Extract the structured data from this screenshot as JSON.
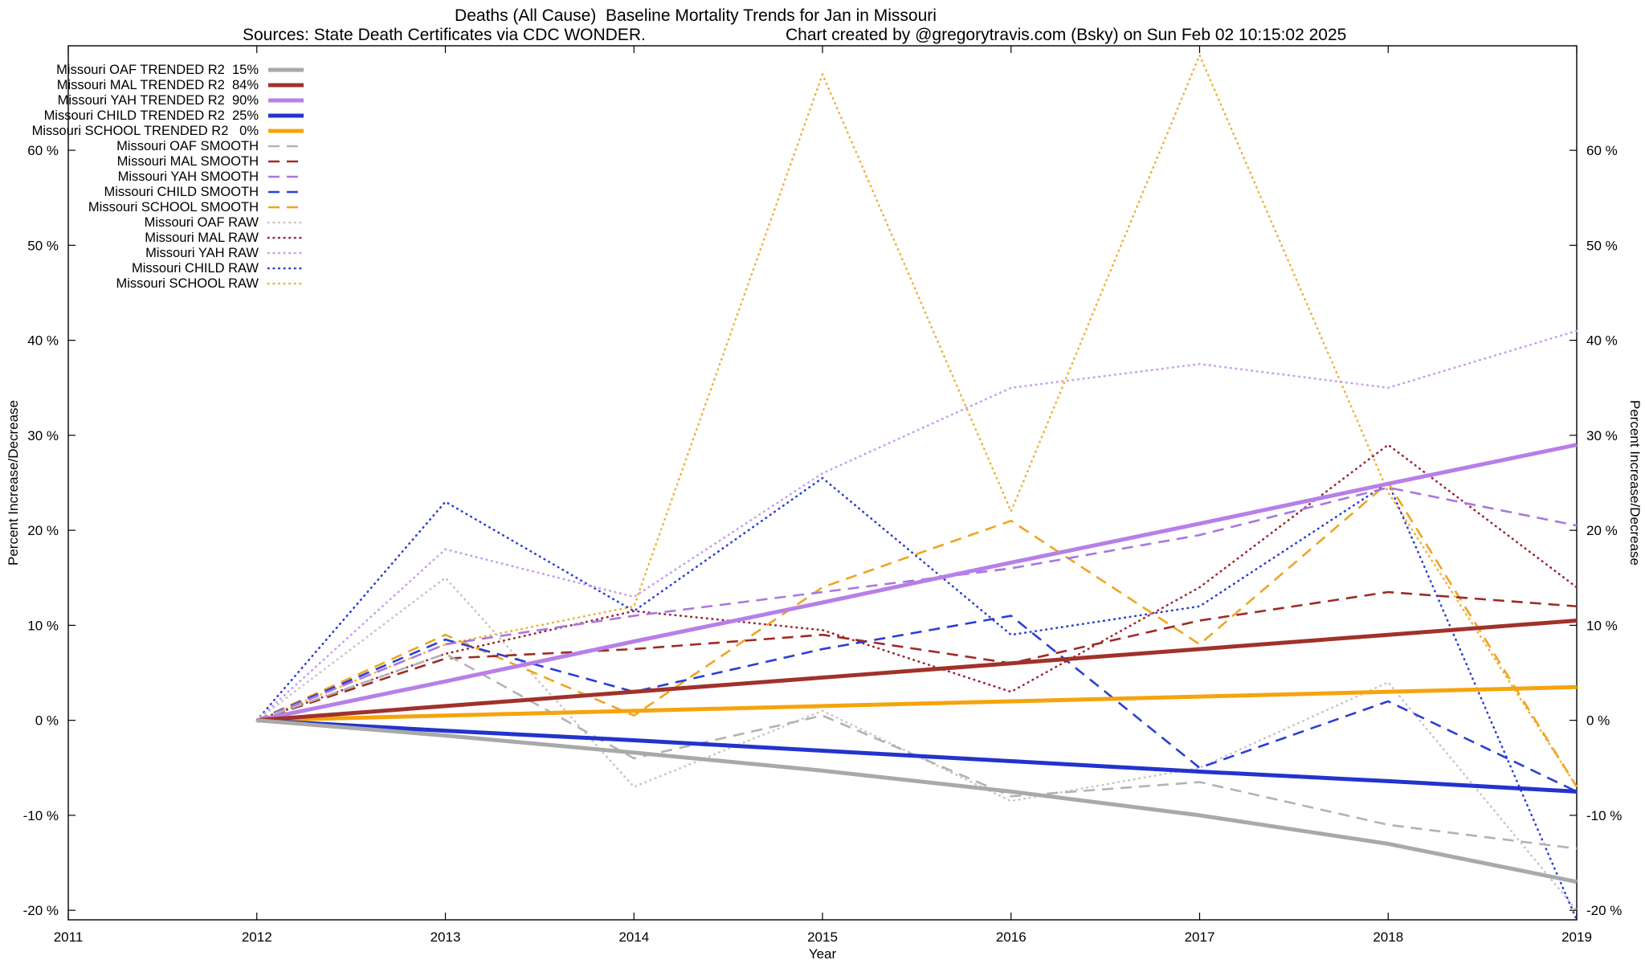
{
  "chart_data": {
    "type": "line",
    "title": "Deaths (All Cause)  Baseline Mortality Trends for Jan in Missouri",
    "source_note": "Sources: State Death Certificates via CDC WONDER.",
    "credit_note": "Chart created by @gregorytravis.com (Bsky) on Sun Feb 02 10:15:02 2025",
    "xlabel": "Year",
    "ylabel_left": "Percent Increase/Decrease",
    "ylabel_right": "Percent Increase/Decrease",
    "xlim": [
      2011,
      2019
    ],
    "ylim": [
      -21,
      71
    ],
    "x_ticks": [
      2011,
      2012,
      2013,
      2014,
      2015,
      2016,
      2017,
      2018,
      2019
    ],
    "y_ticks": [
      -20,
      -10,
      0,
      10,
      20,
      30,
      40,
      50,
      60
    ],
    "y_tick_suffix": " %",
    "grid": false,
    "legend_position": "top-left",
    "x": [
      2012,
      2013,
      2014,
      2015,
      2016,
      2017,
      2018,
      2019
    ],
    "series": [
      {
        "id": "oaf-trended",
        "name": "Missouri OAF TRENDED R2  15%",
        "color": "#a9a9a9",
        "style": "solid",
        "width": 5,
        "values": [
          0,
          -1.6,
          -3.4,
          -5.3,
          -7.5,
          -10,
          -13,
          -17
        ]
      },
      {
        "id": "mal-trended",
        "name": "Missouri MAL TRENDED R2  84%",
        "color": "#a0322a",
        "style": "solid",
        "width": 5,
        "values": [
          0,
          1.5,
          3,
          4.5,
          6,
          7.5,
          9,
          10.5
        ]
      },
      {
        "id": "yah-trended",
        "name": "Missouri YAH TRENDED R2  90%",
        "color": "#b77fe8",
        "style": "solid",
        "width": 5,
        "values": [
          0,
          4.1,
          8.3,
          12.4,
          16.6,
          20.7,
          24.9,
          29
        ]
      },
      {
        "id": "child-trended",
        "name": "Missouri CHILD TRENDED R2  25%",
        "color": "#2433cc",
        "style": "solid",
        "width": 5,
        "values": [
          0,
          -1.1,
          -2.1,
          -3.2,
          -4.3,
          -5.4,
          -6.4,
          -7.5
        ]
      },
      {
        "id": "school-trended",
        "name": "Missouri SCHOOL TRENDED R2   0%",
        "color": "#f5a40c",
        "style": "solid",
        "width": 5,
        "values": [
          0,
          0.5,
          1,
          1.5,
          2,
          2.5,
          3,
          3.5
        ]
      },
      {
        "id": "oaf-smooth",
        "name": "Missouri OAF SMOOTH",
        "color": "#b3b3b3",
        "style": "dashed",
        "width": 2.6,
        "values": [
          0,
          7,
          -4,
          0.5,
          -8,
          -6.5,
          -11,
          -13.5
        ]
      },
      {
        "id": "mal-smooth",
        "name": "Missouri MAL SMOOTH",
        "color": "#9e2b25",
        "style": "dashed",
        "width": 2.6,
        "values": [
          0,
          6.5,
          7.5,
          9,
          6,
          10.5,
          13.5,
          12
        ]
      },
      {
        "id": "yah-smooth",
        "name": "Missouri YAH SMOOTH",
        "color": "#a877e0",
        "style": "dashed",
        "width": 2.6,
        "values": [
          0,
          8,
          11,
          13.5,
          16,
          19.5,
          24.5,
          20.5
        ]
      },
      {
        "id": "child-smooth",
        "name": "Missouri CHILD SMOOTH",
        "color": "#2a3fd4",
        "style": "dashed",
        "width": 2.6,
        "values": [
          0,
          8.5,
          3,
          7.5,
          11,
          -5,
          2,
          -7.5
        ]
      },
      {
        "id": "school-smooth",
        "name": "Missouri SCHOOL SMOOTH",
        "color": "#f0a51e",
        "style": "dashed",
        "width": 2.6,
        "values": [
          0,
          9,
          0.5,
          14,
          21,
          8,
          25,
          -7
        ]
      },
      {
        "id": "oaf-raw",
        "name": "Missouri OAF RAW",
        "color": "#c6c6c6",
        "style": "dotted",
        "width": 2.6,
        "values": [
          0,
          15,
          -7,
          1,
          -8.5,
          -5,
          4,
          -20
        ]
      },
      {
        "id": "mal-raw",
        "name": "Missouri MAL RAW",
        "color": "#9b2433",
        "style": "dotted",
        "width": 2.6,
        "values": [
          0,
          7,
          11.5,
          9.5,
          3,
          14,
          29,
          14
        ]
      },
      {
        "id": "yah-raw",
        "name": "Missouri YAH RAW",
        "color": "#c79df0",
        "style": "dotted",
        "width": 2.6,
        "values": [
          0,
          18,
          13,
          26,
          35,
          37.5,
          35,
          41
        ]
      },
      {
        "id": "child-raw",
        "name": "Missouri CHILD RAW",
        "color": "#2a3fd4",
        "style": "dotted",
        "width": 2.6,
        "values": [
          0,
          23,
          11.5,
          25.5,
          9,
          12,
          25,
          -21
        ]
      },
      {
        "id": "school-raw",
        "name": "Missouri SCHOOL RAW",
        "color": "#efb13c",
        "style": "dotted",
        "width": 2.6,
        "values": [
          0,
          8,
          12,
          68,
          22,
          70,
          24,
          -7
        ]
      }
    ]
  }
}
